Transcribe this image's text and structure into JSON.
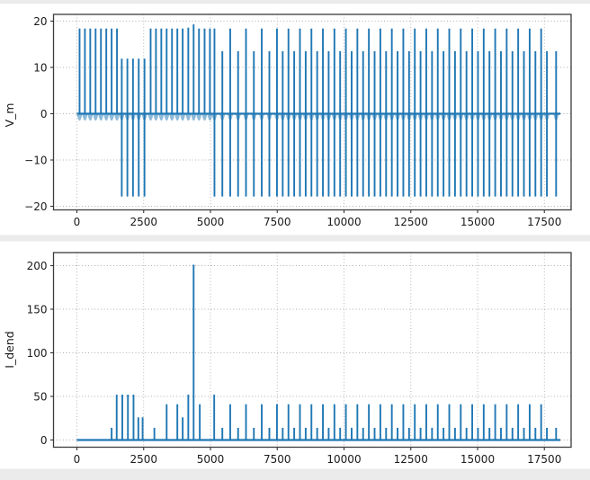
{
  "figure": {
    "background": "#ffffff",
    "window_strip_color": "#ebebeb",
    "grid_color": "#b0b0b0",
    "spine_color": "#3c3c3c",
    "tick_color": "#333333"
  },
  "chart_data": [
    {
      "type": "line",
      "subtype": "spike-train",
      "title": "",
      "xlabel": "",
      "ylabel": "V_m",
      "legend": null,
      "grid": true,
      "line_color": "#1f77b4",
      "subthreshold_color": "rgba(31,119,180,0.5)",
      "xlim": [
        -880,
        18500
      ],
      "ylim": [
        -20.8,
        21.5
      ],
      "xtick_values": [
        0,
        2500,
        5000,
        7500,
        10000,
        12500,
        15000,
        17500
      ],
      "xtick_labels": [
        "0",
        "2500",
        "5000",
        "7500",
        "10000",
        "12500",
        "15000",
        "17500"
      ],
      "ytick_values": [
        20,
        10,
        0,
        -10,
        -20
      ],
      "ytick_labels": [
        "20",
        "10",
        "0",
        "−10",
        "−20"
      ],
      "baseline": {
        "value": 0,
        "x_start": 0,
        "x_end": 18100
      },
      "subthreshold": {
        "depth": -1.6,
        "half_width": 105
      },
      "spikes": [
        [
          100,
          18.4,
          null
        ],
        [
          300,
          18.4,
          null
        ],
        [
          500,
          18.4,
          null
        ],
        [
          700,
          18.4,
          null
        ],
        [
          900,
          18.4,
          null
        ],
        [
          1100,
          18.4,
          null
        ],
        [
          1300,
          18.4,
          null
        ],
        [
          1500,
          18.4,
          null
        ],
        [
          1680,
          11.9,
          -17.9
        ],
        [
          1890,
          11.9,
          -17.9
        ],
        [
          2100,
          11.9,
          -17.9
        ],
        [
          2315,
          11.9,
          -17.9
        ],
        [
          2530,
          11.9,
          -17.9
        ],
        [
          2760,
          18.4,
          null
        ],
        [
          2960,
          18.4,
          null
        ],
        [
          3160,
          18.4,
          null
        ],
        [
          3360,
          18.4,
          null
        ],
        [
          3560,
          18.4,
          null
        ],
        [
          3760,
          18.4,
          null
        ],
        [
          3960,
          18.4,
          null
        ],
        [
          4170,
          18.6,
          null
        ],
        [
          4370,
          19.3,
          null
        ],
        [
          4570,
          18.4,
          null
        ],
        [
          4780,
          18.4,
          null
        ],
        [
          4980,
          18.4,
          null
        ],
        [
          5150,
          18.4,
          -17.9
        ],
        [
          5445,
          13.5,
          -17.9
        ],
        [
          5740,
          18.4,
          -17.9
        ],
        [
          6035,
          13.5,
          -17.9
        ],
        [
          6330,
          18.4,
          -17.9
        ],
        [
          6625,
          13.5,
          -17.9
        ],
        [
          6920,
          18.4,
          -17.9
        ],
        [
          7205,
          13.5,
          -17.9
        ],
        [
          7490,
          18.4,
          -17.9
        ],
        [
          7705,
          13.5,
          -17.9
        ],
        [
          7920,
          18.4,
          -17.9
        ],
        [
          8135,
          13.5,
          -17.9
        ],
        [
          8350,
          18.4,
          -17.9
        ],
        [
          8565,
          13.5,
          -17.9
        ],
        [
          8780,
          18.4,
          -17.9
        ],
        [
          8995,
          13.5,
          -17.9
        ],
        [
          9210,
          18.4,
          -17.9
        ],
        [
          9425,
          13.5,
          -17.9
        ],
        [
          9640,
          18.4,
          -17.9
        ],
        [
          9855,
          13.5,
          -17.9
        ],
        [
          10070,
          18.4,
          -17.9
        ],
        [
          10285,
          13.5,
          -17.9
        ],
        [
          10500,
          18.4,
          -17.9
        ],
        [
          10715,
          13.5,
          -17.9
        ],
        [
          10930,
          18.4,
          -17.9
        ],
        [
          11145,
          13.5,
          -17.9
        ],
        [
          11360,
          18.4,
          -17.9
        ],
        [
          11575,
          13.5,
          -17.9
        ],
        [
          11790,
          18.4,
          -17.9
        ],
        [
          12005,
          13.5,
          -17.9
        ],
        [
          12220,
          18.4,
          -17.9
        ],
        [
          12435,
          13.5,
          -17.9
        ],
        [
          12650,
          18.4,
          -17.9
        ],
        [
          12865,
          13.5,
          -17.9
        ],
        [
          13080,
          18.4,
          -17.9
        ],
        [
          13295,
          13.5,
          -17.9
        ],
        [
          13510,
          18.4,
          -17.9
        ],
        [
          13725,
          13.5,
          -17.9
        ],
        [
          13940,
          18.4,
          -17.9
        ],
        [
          14155,
          13.5,
          -17.9
        ],
        [
          14370,
          18.4,
          -17.9
        ],
        [
          14585,
          13.5,
          -17.9
        ],
        [
          14800,
          18.4,
          -17.9
        ],
        [
          15015,
          13.5,
          -17.9
        ],
        [
          15230,
          18.4,
          -17.9
        ],
        [
          15445,
          13.5,
          -17.9
        ],
        [
          15660,
          18.4,
          -17.9
        ],
        [
          15875,
          13.5,
          -17.9
        ],
        [
          16090,
          18.4,
          -17.9
        ],
        [
          16305,
          13.5,
          -17.9
        ],
        [
          16520,
          18.4,
          -17.9
        ],
        [
          16735,
          13.5,
          -17.9
        ],
        [
          16950,
          18.4,
          -17.9
        ],
        [
          17165,
          13.5,
          -17.9
        ],
        [
          17380,
          18.4,
          -17.9
        ],
        [
          17595,
          13.5,
          -17.9
        ],
        [
          17940,
          13.5,
          -17.9
        ]
      ]
    },
    {
      "type": "line",
      "subtype": "spike-train",
      "title": "",
      "xlabel": "",
      "ylabel": "I_dend",
      "legend": null,
      "grid": true,
      "line_color": "#1f77b4",
      "xlim": [
        -880,
        18500
      ],
      "ylim": [
        -8.2,
        215
      ],
      "xtick_values": [
        0,
        2500,
        5000,
        7500,
        10000,
        12500,
        15000,
        17500
      ],
      "xtick_labels": [
        "0",
        "2500",
        "5000",
        "7500",
        "10000",
        "12500",
        "15000",
        "17500"
      ],
      "ytick_values": [
        0,
        50,
        100,
        150,
        200
      ],
      "ytick_labels": [
        "0",
        "50",
        "100",
        "150",
        "200"
      ],
      "baseline": {
        "value": 0,
        "x_start": 0,
        "x_end": 18100
      },
      "spikes": [
        [
          1300,
          14
        ],
        [
          1490,
          52
        ],
        [
          1700,
          52
        ],
        [
          1910,
          52
        ],
        [
          2120,
          52
        ],
        [
          2300,
          26
        ],
        [
          2460,
          26
        ],
        [
          2900,
          14
        ],
        [
          3360,
          41
        ],
        [
          3760,
          41
        ],
        [
          3960,
          26
        ],
        [
          4170,
          52
        ],
        [
          4370,
          201
        ],
        [
          4600,
          41
        ],
        [
          5140,
          52
        ],
        [
          5445,
          14
        ],
        [
          5740,
          41
        ],
        [
          6035,
          14
        ],
        [
          6330,
          41
        ],
        [
          6625,
          14
        ],
        [
          6920,
          41
        ],
        [
          7205,
          14
        ],
        [
          7490,
          41
        ],
        [
          7705,
          14
        ],
        [
          7920,
          41
        ],
        [
          8135,
          14
        ],
        [
          8350,
          41
        ],
        [
          8565,
          14
        ],
        [
          8780,
          41
        ],
        [
          8995,
          14
        ],
        [
          9210,
          41
        ],
        [
          9425,
          14
        ],
        [
          9640,
          41
        ],
        [
          9855,
          14
        ],
        [
          10070,
          41
        ],
        [
          10285,
          14
        ],
        [
          10500,
          41
        ],
        [
          10715,
          14
        ],
        [
          10930,
          41
        ],
        [
          11145,
          14
        ],
        [
          11360,
          41
        ],
        [
          11575,
          14
        ],
        [
          11790,
          41
        ],
        [
          12005,
          14
        ],
        [
          12220,
          41
        ],
        [
          12435,
          14
        ],
        [
          12650,
          41
        ],
        [
          12865,
          14
        ],
        [
          13080,
          41
        ],
        [
          13295,
          14
        ],
        [
          13510,
          41
        ],
        [
          13725,
          14
        ],
        [
          13940,
          41
        ],
        [
          14155,
          14
        ],
        [
          14370,
          41
        ],
        [
          14585,
          14
        ],
        [
          14800,
          41
        ],
        [
          15015,
          14
        ],
        [
          15230,
          41
        ],
        [
          15445,
          14
        ],
        [
          15660,
          41
        ],
        [
          15875,
          14
        ],
        [
          16090,
          41
        ],
        [
          16305,
          14
        ],
        [
          16520,
          41
        ],
        [
          16735,
          14
        ],
        [
          16950,
          41
        ],
        [
          17165,
          14
        ],
        [
          17380,
          41
        ],
        [
          17595,
          14
        ],
        [
          17940,
          14
        ]
      ]
    }
  ]
}
